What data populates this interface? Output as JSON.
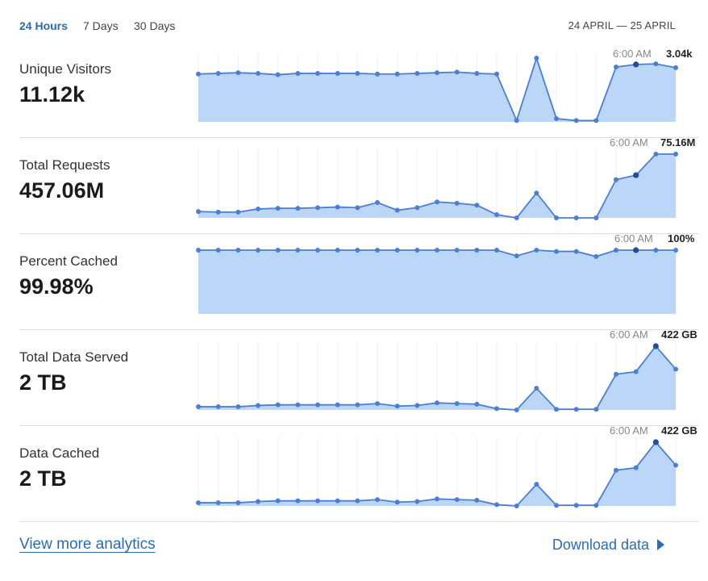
{
  "tabs": [
    {
      "label": "24 Hours",
      "active": true
    },
    {
      "label": "7 Days",
      "active": false
    },
    {
      "label": "30 Days",
      "active": false
    }
  ],
  "date_range": "24 APRIL — 25 APRIL",
  "colors": {
    "accent": "#2b6cb0",
    "line": "#4a7fd4",
    "fill": "#bcd6f8",
    "marker": "#1f4e9c"
  },
  "panels": [
    {
      "label": "Unique Visitors",
      "value": "11.12k",
      "hover_time": "6:00 AM",
      "hover_value": "3.04k"
    },
    {
      "label": "Total Requests",
      "value": "457.06M",
      "hover_time": "6:00 AM",
      "hover_value": "75.16M"
    },
    {
      "label": "Percent Cached",
      "value": "99.98%",
      "hover_time": "6:00 AM",
      "hover_value": "100%"
    },
    {
      "label": "Total Data Served",
      "value": "2 TB",
      "hover_time": "6:00 AM",
      "hover_value": "422 GB"
    },
    {
      "label": "Data Cached",
      "value": "2 TB",
      "hover_time": "6:00 AM",
      "hover_value": "422 GB"
    }
  ],
  "chart_data": [
    {
      "type": "area",
      "name": "Unique Visitors",
      "highlight_index": 22,
      "values": [
        0.75,
        0.76,
        0.77,
        0.76,
        0.74,
        0.76,
        0.76,
        0.76,
        0.76,
        0.75,
        0.75,
        0.76,
        0.77,
        0.78,
        0.76,
        0.75,
        0.02,
        1.0,
        0.05,
        0.02,
        0.02,
        0.86,
        0.9,
        0.91,
        0.85
      ]
    },
    {
      "type": "area",
      "name": "Total Requests",
      "highlight_index": 22,
      "values": [
        0.1,
        0.09,
        0.09,
        0.14,
        0.15,
        0.15,
        0.16,
        0.17,
        0.16,
        0.24,
        0.12,
        0.16,
        0.25,
        0.23,
        0.2,
        0.05,
        0.0,
        0.39,
        0.0,
        0.0,
        0.0,
        0.6,
        0.67,
        1.0,
        1.0
      ]
    },
    {
      "type": "area",
      "name": "Percent Cached",
      "highlight_index": 22,
      "values": [
        1.0,
        1.0,
        1.0,
        1.0,
        1.0,
        1.0,
        1.0,
        1.0,
        1.0,
        1.0,
        1.0,
        1.0,
        1.0,
        1.0,
        1.0,
        1.0,
        0.91,
        1.0,
        0.98,
        0.98,
        0.9,
        1.0,
        1.0,
        1.0,
        1.0
      ]
    },
    {
      "type": "area",
      "name": "Total Data Served",
      "highlight_index": 23,
      "values": [
        0.05,
        0.05,
        0.05,
        0.07,
        0.08,
        0.08,
        0.08,
        0.08,
        0.08,
        0.1,
        0.06,
        0.07,
        0.11,
        0.1,
        0.09,
        0.02,
        0.0,
        0.34,
        0.01,
        0.01,
        0.01,
        0.56,
        0.6,
        1.0,
        0.64
      ]
    },
    {
      "type": "area",
      "name": "Data Cached",
      "highlight_index": 23,
      "values": [
        0.05,
        0.05,
        0.05,
        0.07,
        0.08,
        0.08,
        0.08,
        0.08,
        0.08,
        0.1,
        0.06,
        0.07,
        0.11,
        0.1,
        0.09,
        0.02,
        0.0,
        0.34,
        0.01,
        0.01,
        0.01,
        0.56,
        0.6,
        1.0,
        0.64
      ]
    }
  ],
  "footer": {
    "view_more": "View more analytics",
    "download": "Download data"
  }
}
